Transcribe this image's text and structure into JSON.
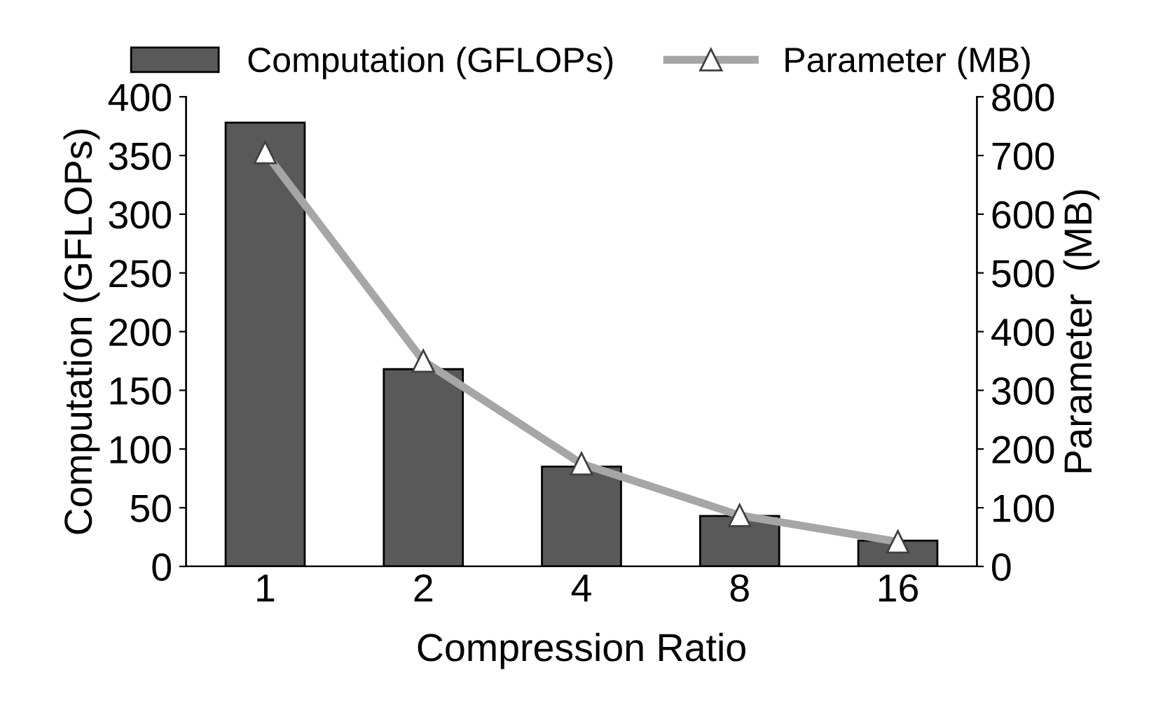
{
  "chart_data": {
    "type": "bar",
    "xlabel": "Compression Ratio",
    "ylabel": "Computation (GFLOPs)",
    "y2label": "Parameter  (MB)",
    "categories": [
      "1",
      "2",
      "4",
      "8",
      "16"
    ],
    "series": [
      {
        "name": "Computation (GFLOPs)",
        "color": "#595959",
        "values": [
          378,
          168,
          85,
          43,
          22
        ]
      },
      {
        "name": "Parameter (MB)",
        "type": "line",
        "axis": "y2",
        "color": "#a6a6a6",
        "marker": "triangle",
        "line_style": "solid",
        "values": [
          705,
          350,
          175,
          87,
          42
        ]
      }
    ],
    "ylim": [
      0,
      400
    ],
    "yticks": [
      0,
      50,
      100,
      150,
      200,
      250,
      300,
      350,
      400
    ],
    "y2lim": [
      0,
      800
    ],
    "y2ticks": [
      0,
      100,
      200,
      300,
      400,
      500,
      600,
      700,
      800
    ],
    "grid": false,
    "legend": "top"
  }
}
